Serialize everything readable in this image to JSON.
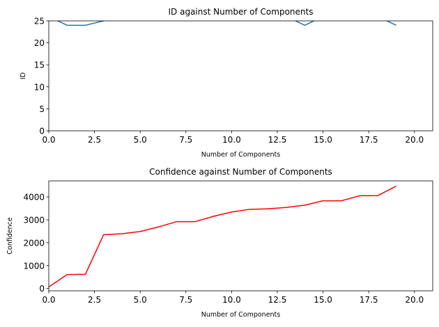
{
  "chart_data": [
    {
      "type": "line",
      "title": "ID against Number of Components",
      "xlabel": "Number of Components",
      "ylabel": "ID",
      "xlim": [
        0,
        21
      ],
      "ylim": [
        0,
        25
      ],
      "xticks": [
        0,
        2.5,
        5,
        7.5,
        10,
        12.5,
        15,
        17.5,
        20
      ],
      "xtick_labels": [
        "0.0",
        "2.5",
        "5.0",
        "7.5",
        "10.0",
        "12.5",
        "15.0",
        "17.5",
        "20.0"
      ],
      "yticks": [
        0,
        5,
        10,
        15,
        20,
        25
      ],
      "ytick_labels": [
        "0",
        "5",
        "10",
        "15",
        "20",
        "25"
      ],
      "grid": false,
      "series": [
        {
          "color": "#1f77b4",
          "x": [
            0,
            1,
            2,
            3,
            4,
            5,
            6,
            7,
            8,
            9,
            10,
            11,
            12,
            13,
            14,
            15,
            16,
            17,
            18,
            19
          ],
          "values": [
            26,
            24,
            24,
            25,
            26,
            26,
            26,
            26,
            26,
            26,
            26,
            26,
            26,
            26,
            24,
            26,
            26,
            26,
            26,
            24
          ]
        }
      ]
    },
    {
      "type": "line",
      "title": "Confidence against Number of Components",
      "xlabel": "Number of Components",
      "ylabel": "Confidence",
      "xlim": [
        0,
        21
      ],
      "ylim": [
        -100,
        4700
      ],
      "xticks": [
        0,
        2.5,
        5,
        7.5,
        10,
        12.5,
        15,
        17.5,
        20
      ],
      "xtick_labels": [
        "0.0",
        "2.5",
        "5.0",
        "7.5",
        "10.0",
        "12.5",
        "15.0",
        "17.5",
        "20.0"
      ],
      "yticks": [
        0,
        1000,
        2000,
        3000,
        4000
      ],
      "ytick_labels": [
        "0",
        "1000",
        "2000",
        "3000",
        "4000"
      ],
      "grid": false,
      "series": [
        {
          "color": "#ff0000",
          "x": [
            0,
            1,
            2,
            3,
            4,
            5,
            6,
            7,
            8,
            9,
            10,
            11,
            12,
            13,
            14,
            15,
            16,
            17,
            18,
            19
          ],
          "values": [
            70,
            610,
            620,
            2350,
            2390,
            2490,
            2690,
            2920,
            2920,
            3150,
            3340,
            3460,
            3480,
            3540,
            3640,
            3830,
            3830,
            4050,
            4060,
            4470
          ]
        }
      ]
    }
  ]
}
